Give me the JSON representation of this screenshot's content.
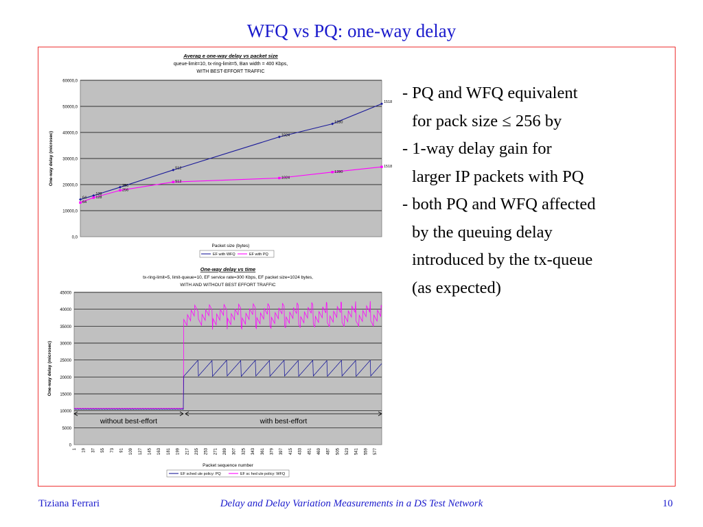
{
  "slide": {
    "title": "WFQ vs PQ: one-way delay",
    "bullets": [
      "- PQ and WFQ equivalent for pack size ≤ 256 by",
      "- 1-way delay gain for larger IP packets with PQ",
      "- both PQ and WFQ affected by the queuing delay introduced by the tx-queue (as expected)"
    ],
    "bullet_lines": [
      [
        "- PQ and WFQ equivalent",
        "for pack size ≤ 256 by"
      ],
      [
        "- 1-way delay gain for",
        "larger IP packets with PQ"
      ],
      [
        "- both PQ and WFQ affected",
        "by the queuing delay",
        "introduced by the tx-queue",
        "(as expected)"
      ]
    ],
    "footer": {
      "author": "Tiziana Ferrari",
      "subtitle": "Delay and Delay Variation Measurements in a DS Test Network",
      "page": "10"
    }
  },
  "colors": {
    "title": "#1a1acc",
    "frame": "#e33333",
    "plot_bg": "#c0c0c0",
    "wfq_series": "#1a1a99",
    "pq_series": "#ff00ff"
  },
  "chart_data": [
    {
      "type": "line",
      "title": "Averag e one-way delay vs packet size",
      "subtitle_lines": [
        "queue-limit=10, tx-ring-limit=5, Ban width = 400 Kbps,",
        "WITH BEST-EFFORT TRAFFIC"
      ],
      "xlabel": "Packet size (bytes)",
      "ylabel": "One-way delay (microsec)",
      "ylim": [
        0,
        60000
      ],
      "yticks": [
        "0,0",
        "10000,0",
        "20000,0",
        "30000,0",
        "40000,0",
        "50000,0",
        "60000,0"
      ],
      "xlim": [
        64,
        1518
      ],
      "grid": true,
      "legend": "bottom",
      "series": [
        {
          "name": "EF with WFQ",
          "x": [
            64,
            128,
            256,
            512,
            1024,
            1280,
            1518
          ],
          "values": [
            14300,
            15800,
            19000,
            25600,
            38300,
            43300,
            51000
          ],
          "labels": [
            "64",
            "128",
            "256",
            "512",
            "1024",
            "1280",
            "1518"
          ]
        },
        {
          "name": "EF with PQ",
          "x": [
            64,
            128,
            256,
            512,
            1024,
            1280,
            1518
          ],
          "values": [
            13100,
            15000,
            17800,
            21000,
            22500,
            24800,
            26800
          ],
          "labels": [
            "64",
            "128",
            "256",
            "512",
            "1024",
            "1280",
            "1518"
          ]
        }
      ]
    },
    {
      "type": "line",
      "title": "One-way delay vs time",
      "subtitle_lines": [
        "tx-ring-limit=5, limit-queue=10, EF service rate=300 Kbps, EF packet size=1024 bytes,",
        "WITH AND WITHOUT BEST EFFORT TRAFFIC"
      ],
      "xlabel": "Packet sequence number",
      "ylabel": "One-way delay (microsec)",
      "ylim": [
        0,
        45000
      ],
      "yticks": [
        "0",
        "5000",
        "10000",
        "15000",
        "20000",
        "25000",
        "30000",
        "35000",
        "40000",
        "45000"
      ],
      "xlim": [
        1,
        590
      ],
      "xticks": [
        "1",
        "19",
        "37",
        "55",
        "73",
        "91",
        "109",
        "127",
        "145",
        "163",
        "181",
        "199",
        "217",
        "235",
        "253",
        "271",
        "289",
        "307",
        "325",
        "343",
        "361",
        "379",
        "397",
        "415",
        "433",
        "451",
        "469",
        "487",
        "505",
        "523",
        "541",
        "559",
        "577"
      ],
      "grid": true,
      "legend": "bottom",
      "annotations": [
        {
          "text": "without best-effort",
          "x_from": 1,
          "x_to": 210
        },
        {
          "text": "with best-effort",
          "x_from": 214,
          "x_to": 590
        }
      ],
      "series": [
        {
          "name": "EF sched ule policy: PQ",
          "baseline": 10500,
          "step_at": 211,
          "sawtooth_min": 20200,
          "sawtooth_max": 25000,
          "sawtooth_period": 27.5
        },
        {
          "name": "EF sc hed ule policy: WFQ",
          "baseline": 10700,
          "step_at": 211,
          "sawtooth_min": 35500,
          "sawtooth_max": 41000,
          "sawtooth_period": 27.5
        }
      ]
    }
  ]
}
